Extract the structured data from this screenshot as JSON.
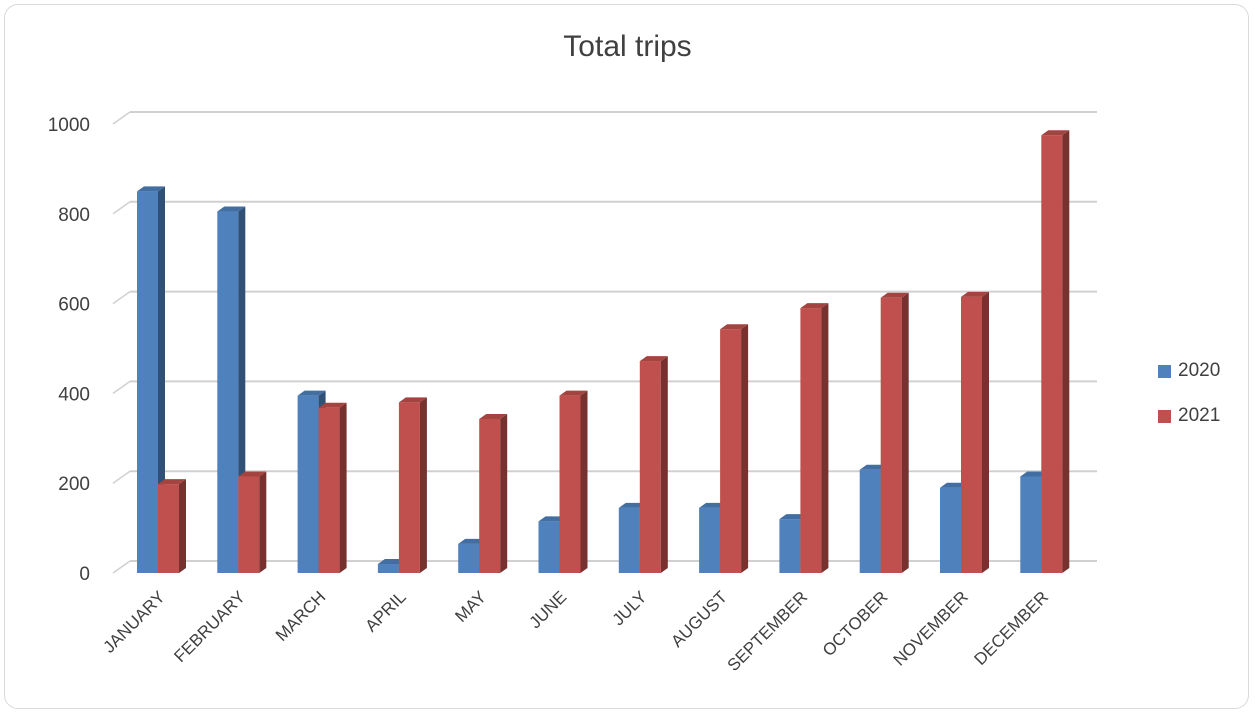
{
  "chart_data": {
    "type": "bar",
    "title": "Total trips",
    "categories": [
      "JANUARY",
      "FEBRUARY",
      "MARCH",
      "APRIL",
      "MAY",
      "JUNE",
      "JULY",
      "AUGUST",
      "SEPTEMBER",
      "OCTOBER",
      "NOVEMBER",
      "DECEMBER"
    ],
    "series": [
      {
        "name": "2020",
        "color": "#4f81bd",
        "values": [
          850,
          805,
          395,
          20,
          65,
          115,
          145,
          145,
          120,
          230,
          190,
          215
        ]
      },
      {
        "name": "2021",
        "color": "#c0504d",
        "values": [
          198,
          215,
          368,
          380,
          343,
          395,
          472,
          543,
          590,
          613,
          615,
          975
        ]
      }
    ],
    "ylim": [
      0,
      1000
    ],
    "yticks": [
      "0",
      "200",
      "400",
      "600",
      "800",
      "1000"
    ],
    "grid": true,
    "legend": "right",
    "xlabel": "",
    "ylabel": ""
  }
}
